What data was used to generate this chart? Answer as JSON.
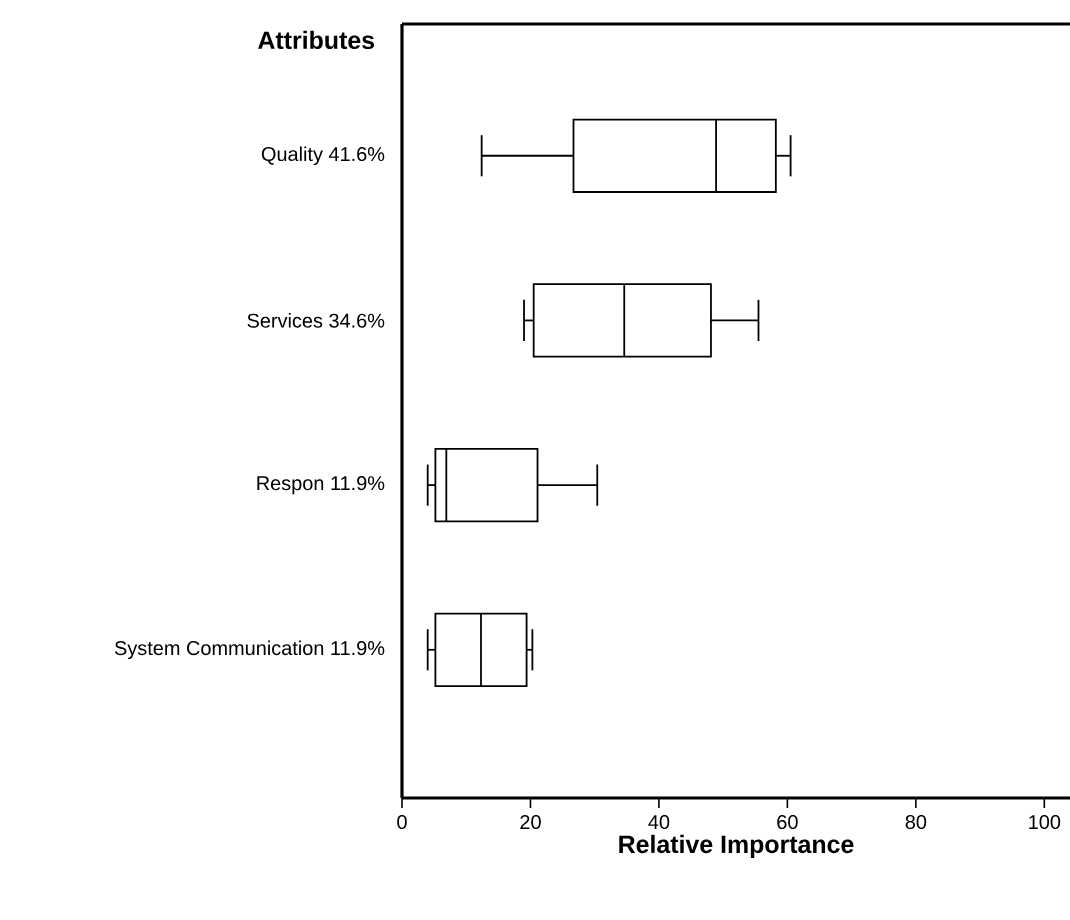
{
  "chart_data": {
    "type": "box",
    "orientation": "horizontal",
    "ylabel": "Attributes",
    "xlabel": "Relative Importance",
    "categories": [
      "Quality 41.6%",
      "Services 34.6%",
      "Respon 11.9%",
      "System Communication 11.9%"
    ],
    "boxes": [
      {
        "low": 12.4,
        "q1": 26.7,
        "median": 48.9,
        "q3": 58.2,
        "high": 60.5
      },
      {
        "low": 19.0,
        "q1": 20.5,
        "median": 34.6,
        "q3": 48.1,
        "high": 55.5
      },
      {
        "low": 4.0,
        "q1": 5.2,
        "median": 6.9,
        "q3": 21.1,
        "high": 30.4
      },
      {
        "low": 4.0,
        "q1": 5.2,
        "median": 12.3,
        "q3": 19.4,
        "high": 20.3
      }
    ],
    "xlim": [
      0,
      104
    ],
    "xticks": [
      0,
      20,
      40,
      60,
      80,
      100
    ]
  }
}
